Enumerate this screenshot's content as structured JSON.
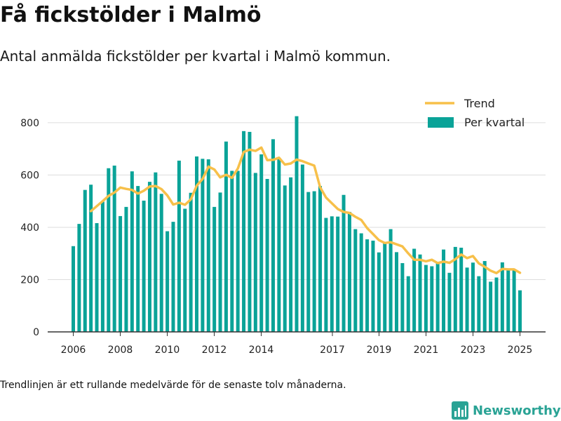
{
  "header": {
    "title": "Få fickstölder i Malmö",
    "subtitle": "Antal anmälda fickstölder per kvartal i Malmö kommun."
  },
  "footer": {
    "note": "Trendlinjen är ett rullande medelvärde för de senaste tolv månaderna.",
    "brand": "Newsworthy"
  },
  "colors": {
    "bars": "#0aa398",
    "trend": "#f7c04a",
    "grid": "#dddddd",
    "axis": "#333333",
    "brand": "#2aa395"
  },
  "chart_data": {
    "type": "bar",
    "title": "Få fickstölder i Malmö",
    "subtitle": "Antal anmälda fickstölder per kvartal i Malmö kommun.",
    "xlabel": "",
    "ylabel": "",
    "x_ticks": [
      "2006",
      "2008",
      "2010",
      "2012",
      "2014",
      "2017",
      "2019",
      "2021",
      "2023",
      "2025"
    ],
    "y_ticks": [
      0,
      200,
      400,
      600,
      800
    ],
    "ylim": [
      0,
      840
    ],
    "grid": true,
    "legend_position": "top-right",
    "series": [
      {
        "name": "Per kvartal",
        "kind": "bar",
        "values": [
          328,
          413,
          543,
          563,
          416,
          498,
          626,
          636,
          443,
          478,
          614,
          558,
          502,
          574,
          610,
          528,
          385,
          421,
          655,
          471,
          532,
          671,
          662,
          660,
          478,
          533,
          728,
          616,
          616,
          768,
          765,
          608,
          679,
          585,
          737,
          663,
          560,
          591,
          825,
          640,
          535,
          538,
          558,
          436,
          442,
          441,
          524,
          459,
          393,
          377,
          354,
          349,
          304,
          338,
          393,
          305,
          263,
          213,
          318,
          296,
          256,
          251,
          265,
          315,
          226,
          325,
          322,
          246,
          265,
          213,
          271,
          192,
          208,
          266,
          237,
          236,
          159
        ]
      },
      {
        "name": "Trend",
        "kind": "line",
        "values": [
          null,
          null,
          null,
          462,
          481,
          500,
          520,
          533,
          552,
          547,
          543,
          529,
          540,
          556,
          558,
          546,
          522,
          487,
          494,
          486,
          507,
          559,
          585,
          632,
          621,
          591,
          601,
          589,
          625,
          688,
          697,
          692,
          705,
          657,
          658,
          666,
          640,
          644,
          659,
          653,
          644,
          636,
          553,
          514,
          492,
          470,
          459,
          455,
          440,
          428,
          397,
          374,
          351,
          340,
          343,
          335,
          327,
          300,
          276,
          276,
          270,
          276,
          263,
          269,
          264,
          278,
          296,
          282,
          290,
          262,
          249,
          234,
          225,
          241,
          239,
          239,
          226
        ]
      }
    ]
  }
}
